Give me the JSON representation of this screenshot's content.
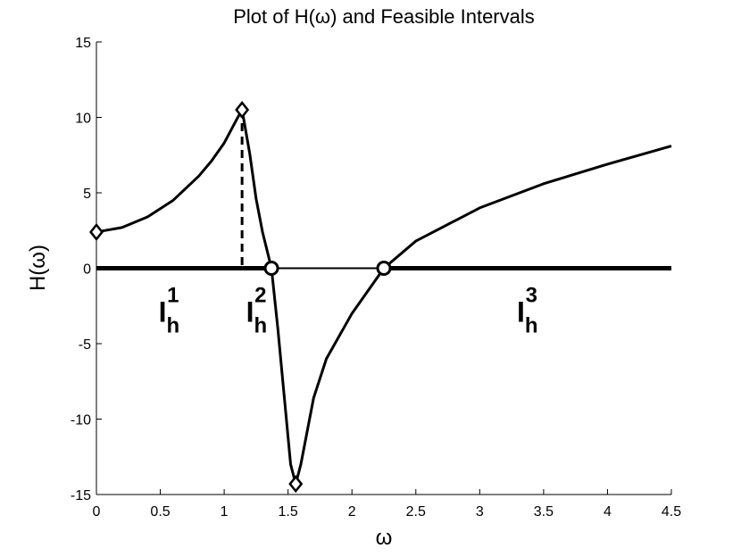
{
  "chart_data": {
    "type": "line",
    "title": "Plot of H(ω) and Feasible Intervals",
    "x_label": "ω",
    "y_label": "H(ω)",
    "xlim": [
      0,
      4.5
    ],
    "ylim": [
      -15,
      15
    ],
    "xticks": [
      0,
      0.5,
      1,
      1.5,
      2,
      2.5,
      3,
      3.5,
      4,
      4.5
    ],
    "yticks": [
      -15,
      -10,
      -5,
      0,
      5,
      10,
      15
    ],
    "color": "#000000",
    "x": [
      0,
      0.2,
      0.4,
      0.6,
      0.8,
      0.9,
      1.0,
      1.1,
      1.14,
      1.2,
      1.25,
      1.3,
      1.37,
      1.42,
      1.47,
      1.52,
      1.56,
      1.6,
      1.7,
      1.8,
      2.0,
      2.25,
      2.5,
      3.0,
      3.5,
      4.0,
      4.5
    ],
    "values": [
      2.4,
      2.7,
      3.4,
      4.5,
      6.1,
      7.1,
      8.3,
      9.9,
      10.5,
      7.6,
      4.6,
      2.4,
      0,
      -4,
      -8.5,
      -13,
      -14.3,
      -13,
      -8.6,
      -6,
      -3,
      0,
      1.8,
      4.0,
      5.6,
      6.9,
      8.1
    ],
    "extrema": {
      "x": [
        0,
        1.14,
        1.56
      ],
      "y": [
        2.4,
        10.5,
        -14.3
      ]
    },
    "roots": [
      1.37,
      2.25
    ],
    "intervals": [
      {
        "main": "I",
        "sub": "h",
        "sup": "1",
        "range": [
          0,
          1.14
        ]
      },
      {
        "main": "I",
        "sub": "h",
        "sup": "2",
        "range": [
          1.14,
          1.37
        ]
      },
      {
        "main": "I",
        "sub": "h",
        "sup": "3",
        "range": [
          2.25,
          4.5
        ]
      }
    ]
  }
}
